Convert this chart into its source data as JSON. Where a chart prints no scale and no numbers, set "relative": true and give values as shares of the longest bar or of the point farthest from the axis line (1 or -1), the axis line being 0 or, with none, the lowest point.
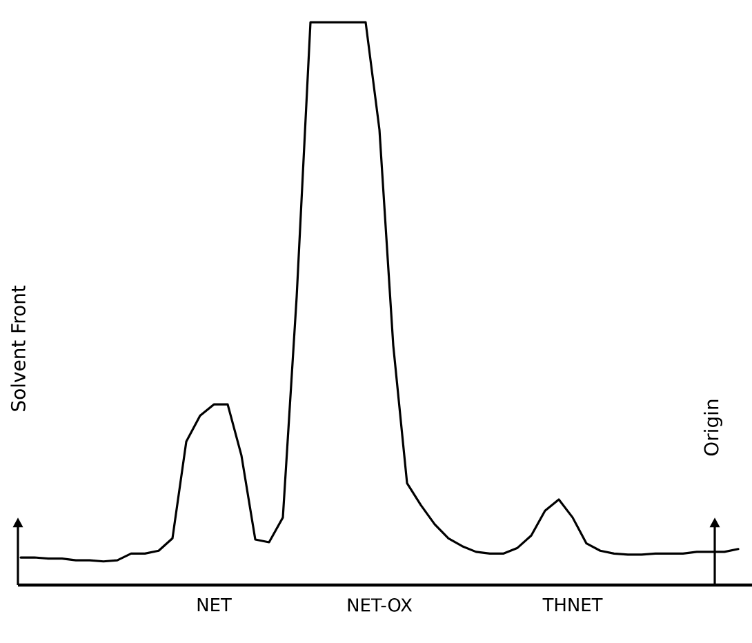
{
  "chart_data": {
    "type": "line",
    "relative": true,
    "categories": [
      null,
      null,
      null,
      null,
      null,
      null,
      null,
      null,
      null,
      null,
      null,
      null,
      null,
      null,
      "NET",
      null,
      null,
      null,
      null,
      null,
      null,
      null,
      null,
      null,
      null,
      null,
      "NET-OX",
      null,
      null,
      null,
      null,
      null,
      null,
      null,
      null,
      null,
      null,
      null,
      null,
      null,
      "THNET",
      null,
      null,
      null,
      null,
      null,
      null,
      null,
      null,
      null,
      null,
      null,
      null
    ],
    "series": [
      {
        "color": "#000000",
        "values": [
          0.049,
          0.049,
          0.047,
          0.047,
          0.044,
          0.044,
          0.042,
          0.044,
          0.056,
          0.056,
          0.061,
          0.083,
          0.255,
          0.301,
          0.321,
          0.321,
          0.23,
          0.081,
          0.076,
          0.12,
          0.512,
          1,
          1,
          1,
          1,
          1,
          0.809,
          0.426,
          0.181,
          0.142,
          0.108,
          0.083,
          0.069,
          0.059,
          0.056,
          0.056,
          0.066,
          0.088,
          0.132,
          0.152,
          0.12,
          0.074,
          0.061,
          0.056,
          0.054,
          0.054,
          0.056,
          0.056,
          0.056,
          0.059,
          0.059,
          0.059,
          0.064
        ]
      }
    ],
    "annotations": [
      "Solvent Front",
      "Origin"
    ]
  }
}
